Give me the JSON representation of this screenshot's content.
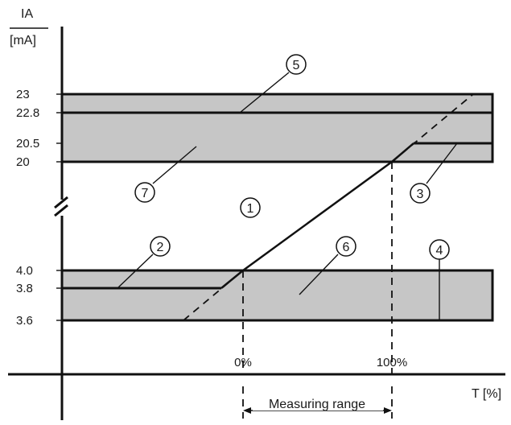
{
  "axes": {
    "y_title": "IA",
    "y_unit": "[mA]",
    "x_title": "T [%]"
  },
  "y_ticks": [
    "23",
    "22.8",
    "20.5",
    "20",
    "4.0",
    "3.8",
    "3.6"
  ],
  "x_ticks": [
    "0%",
    "100%"
  ],
  "range_label": "Measuring range",
  "callouts": [
    "1",
    "2",
    "3",
    "4",
    "5",
    "6",
    "7"
  ],
  "chart_data": {
    "type": "line",
    "xlabel": "T [%]",
    "ylabel": "IA [mA]",
    "axis_break": "between 4.0 and 20 mA",
    "y_ticks": [
      3.6,
      3.8,
      4.0,
      20,
      20.5,
      22.8,
      23
    ],
    "x_ticks": [
      "0%",
      "100%"
    ],
    "bands": [
      {
        "from": 20,
        "to": 23
      },
      {
        "from": 3.6,
        "to": 4.0
      }
    ],
    "series": [
      {
        "style": "solid",
        "x": [
          0,
          100
        ],
        "y": [
          4.0,
          20
        ]
      }
    ],
    "limits": [
      {
        "style": "solid",
        "y": 3.8
      },
      {
        "style": "solid",
        "y": 20.5
      },
      {
        "style": "solid",
        "y": 22.8
      }
    ]
  }
}
